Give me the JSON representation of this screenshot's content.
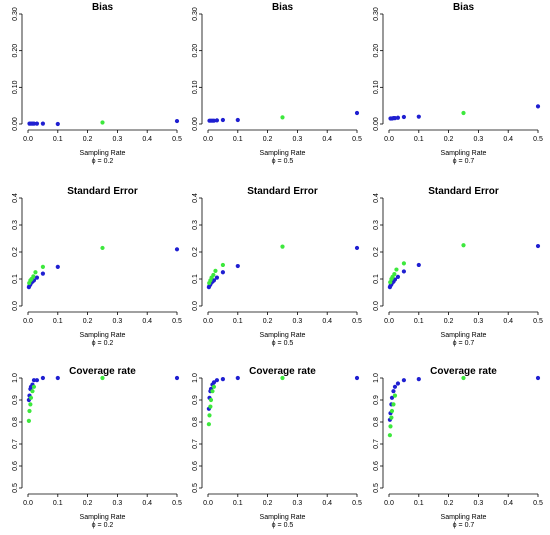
{
  "colors": {
    "series_1": "#1f1fd1",
    "series_2": "#3de83d"
  },
  "columns": [
    {
      "xlabel": "Sampling Rate",
      "phi_label": "ϕ = 0.2"
    },
    {
      "xlabel": "Sampling Rate",
      "phi_label": "ϕ = 0.5"
    },
    {
      "xlabel": "Sampling Rate",
      "phi_label": "ϕ = 0.7"
    }
  ],
  "chart_data": [
    {
      "type": "scatter",
      "title": "Bias",
      "xlabel": "Sampling Rate",
      "subtitle": "ϕ = 0.2",
      "xlim": [
        0,
        0.5
      ],
      "ylim": [
        0,
        0.3
      ],
      "xticks": [
        "0.0",
        "0.1",
        "0.2",
        "0.3",
        "0.4",
        "0.5"
      ],
      "yticks": [
        "0.00",
        "0.10",
        "0.20",
        "0.30"
      ],
      "grid": false,
      "series": [
        {
          "color": "blue",
          "points": [
            [
              0.005,
              0.001
            ],
            [
              0.01,
              0.001
            ],
            [
              0.015,
              0.001
            ],
            [
              0.02,
              0.001
            ],
            [
              0.03,
              0.001
            ],
            [
              0.05,
              0.001
            ],
            [
              0.1,
              0.0
            ],
            [
              0.5,
              0.008
            ]
          ]
        },
        {
          "color": "green",
          "points": [
            [
              0.25,
              0.004
            ]
          ]
        }
      ]
    },
    {
      "type": "scatter",
      "title": "Bias",
      "xlabel": "Sampling Rate",
      "subtitle": "ϕ = 0.5",
      "xlim": [
        0,
        0.5
      ],
      "ylim": [
        0,
        0.3
      ],
      "xticks": [
        "0.0",
        "0.1",
        "0.2",
        "0.3",
        "0.4",
        "0.5"
      ],
      "yticks": [
        "0.00",
        "0.10",
        "0.20",
        "0.30"
      ],
      "grid": false,
      "series": [
        {
          "color": "blue",
          "points": [
            [
              0.005,
              0.009
            ],
            [
              0.01,
              0.009
            ],
            [
              0.015,
              0.009
            ],
            [
              0.02,
              0.009
            ],
            [
              0.03,
              0.01
            ],
            [
              0.05,
              0.011
            ],
            [
              0.1,
              0.011
            ],
            [
              0.5,
              0.03
            ]
          ]
        },
        {
          "color": "green",
          "points": [
            [
              0.25,
              0.018
            ]
          ]
        }
      ]
    },
    {
      "type": "scatter",
      "title": "Bias",
      "xlabel": "Sampling Rate",
      "subtitle": "ϕ = 0.7",
      "xlim": [
        0,
        0.5
      ],
      "ylim": [
        0,
        0.3
      ],
      "xticks": [
        "0.0",
        "0.1",
        "0.2",
        "0.3",
        "0.4",
        "0.5"
      ],
      "yticks": [
        "0.00",
        "0.10",
        "0.20",
        "0.30"
      ],
      "grid": false,
      "series": [
        {
          "color": "blue",
          "points": [
            [
              0.005,
              0.015
            ],
            [
              0.01,
              0.015
            ],
            [
              0.015,
              0.016
            ],
            [
              0.02,
              0.016
            ],
            [
              0.03,
              0.017
            ],
            [
              0.05,
              0.019
            ],
            [
              0.1,
              0.02
            ],
            [
              0.5,
              0.048
            ]
          ]
        },
        {
          "color": "green",
          "points": [
            [
              0.25,
              0.03
            ]
          ]
        }
      ]
    },
    {
      "type": "scatter",
      "title": "Standard Error",
      "xlabel": "Sampling Rate",
      "subtitle": "ϕ = 0.2",
      "xlim": [
        0,
        0.5
      ],
      "ylim": [
        0,
        0.4
      ],
      "xticks": [
        "0.0",
        "0.1",
        "0.2",
        "0.3",
        "0.4",
        "0.5"
      ],
      "yticks": [
        "0.0",
        "0.1",
        "0.2",
        "0.3",
        "0.4"
      ],
      "grid": false,
      "series": [
        {
          "color": "blue",
          "points": [
            [
              0.003,
              0.07
            ],
            [
              0.005,
              0.075
            ],
            [
              0.008,
              0.08
            ],
            [
              0.01,
              0.085
            ],
            [
              0.015,
              0.09
            ],
            [
              0.02,
              0.095
            ],
            [
              0.03,
              0.105
            ],
            [
              0.05,
              0.12
            ],
            [
              0.1,
              0.145
            ],
            [
              0.5,
              0.21
            ]
          ]
        },
        {
          "color": "green",
          "points": [
            [
              0.004,
              0.085
            ],
            [
              0.008,
              0.095
            ],
            [
              0.012,
              0.1
            ],
            [
              0.018,
              0.11
            ],
            [
              0.025,
              0.125
            ],
            [
              0.05,
              0.145
            ],
            [
              0.25,
              0.215
            ]
          ]
        }
      ]
    },
    {
      "type": "scatter",
      "title": "Standard Error",
      "xlabel": "Sampling Rate",
      "subtitle": "ϕ = 0.5",
      "xlim": [
        0,
        0.5
      ],
      "ylim": [
        0,
        0.4
      ],
      "xticks": [
        "0.0",
        "0.1",
        "0.2",
        "0.3",
        "0.4",
        "0.5"
      ],
      "yticks": [
        "0.0",
        "0.1",
        "0.2",
        "0.3",
        "0.4"
      ],
      "grid": false,
      "series": [
        {
          "color": "blue",
          "points": [
            [
              0.003,
              0.07
            ],
            [
              0.005,
              0.075
            ],
            [
              0.008,
              0.08
            ],
            [
              0.01,
              0.085
            ],
            [
              0.015,
              0.09
            ],
            [
              0.02,
              0.095
            ],
            [
              0.03,
              0.105
            ],
            [
              0.05,
              0.125
            ],
            [
              0.1,
              0.148
            ],
            [
              0.5,
              0.215
            ]
          ]
        },
        {
          "color": "green",
          "points": [
            [
              0.004,
              0.085
            ],
            [
              0.008,
              0.095
            ],
            [
              0.012,
              0.105
            ],
            [
              0.018,
              0.115
            ],
            [
              0.025,
              0.13
            ],
            [
              0.05,
              0.152
            ],
            [
              0.25,
              0.22
            ]
          ]
        }
      ]
    },
    {
      "type": "scatter",
      "title": "Standard Error",
      "xlabel": "Sampling Rate",
      "subtitle": "ϕ = 0.7",
      "xlim": [
        0,
        0.5
      ],
      "ylim": [
        0,
        0.4
      ],
      "xticks": [
        "0.0",
        "0.1",
        "0.2",
        "0.3",
        "0.4",
        "0.5"
      ],
      "yticks": [
        "0.0",
        "0.1",
        "0.2",
        "0.3",
        "0.4"
      ],
      "grid": false,
      "series": [
        {
          "color": "blue",
          "points": [
            [
              0.003,
              0.07
            ],
            [
              0.005,
              0.075
            ],
            [
              0.008,
              0.08
            ],
            [
              0.01,
              0.085
            ],
            [
              0.015,
              0.09
            ],
            [
              0.02,
              0.098
            ],
            [
              0.03,
              0.108
            ],
            [
              0.05,
              0.128
            ],
            [
              0.1,
              0.152
            ],
            [
              0.5,
              0.222
            ]
          ]
        },
        {
          "color": "green",
          "points": [
            [
              0.004,
              0.088
            ],
            [
              0.008,
              0.1
            ],
            [
              0.012,
              0.108
            ],
            [
              0.018,
              0.118
            ],
            [
              0.025,
              0.135
            ],
            [
              0.05,
              0.158
            ],
            [
              0.25,
              0.225
            ]
          ]
        }
      ]
    },
    {
      "type": "scatter",
      "title": "Coverage rate",
      "xlabel": "Sampling Rate",
      "subtitle": "ϕ = 0.2",
      "xlim": [
        0,
        0.5
      ],
      "ylim": [
        0.5,
        1.0
      ],
      "xticks": [
        "0.0",
        "0.1",
        "0.2",
        "0.3",
        "0.4",
        "0.5"
      ],
      "yticks": [
        "0.5",
        "0.6",
        "0.7",
        "0.8",
        "0.9",
        "1.0"
      ],
      "grid": false,
      "series": [
        {
          "color": "blue",
          "points": [
            [
              0.003,
              0.9
            ],
            [
              0.005,
              0.92
            ],
            [
              0.008,
              0.95
            ],
            [
              0.01,
              0.96
            ],
            [
              0.015,
              0.97
            ],
            [
              0.02,
              0.99
            ],
            [
              0.03,
              0.99
            ],
            [
              0.05,
              1.0
            ],
            [
              0.1,
              1.0
            ],
            [
              0.5,
              1.0
            ]
          ]
        },
        {
          "color": "green",
          "points": [
            [
              0.003,
              0.805
            ],
            [
              0.005,
              0.85
            ],
            [
              0.008,
              0.88
            ],
            [
              0.01,
              0.91
            ],
            [
              0.015,
              0.94
            ],
            [
              0.02,
              0.96
            ],
            [
              0.25,
              1.0
            ]
          ]
        }
      ]
    },
    {
      "type": "scatter",
      "title": "Coverage rate",
      "xlabel": "Sampling Rate",
      "subtitle": "ϕ = 0.5",
      "xlim": [
        0,
        0.5
      ],
      "ylim": [
        0.5,
        1.0
      ],
      "xticks": [
        "0.0",
        "0.1",
        "0.2",
        "0.3",
        "0.4",
        "0.5"
      ],
      "yticks": [
        "0.5",
        "0.6",
        "0.7",
        "0.8",
        "0.9",
        "1.0"
      ],
      "grid": false,
      "series": [
        {
          "color": "blue",
          "points": [
            [
              0.003,
              0.86
            ],
            [
              0.005,
              0.91
            ],
            [
              0.008,
              0.94
            ],
            [
              0.01,
              0.95
            ],
            [
              0.015,
              0.97
            ],
            [
              0.02,
              0.98
            ],
            [
              0.03,
              0.99
            ],
            [
              0.05,
              0.995
            ],
            [
              0.1,
              1.0
            ],
            [
              0.5,
              1.0
            ]
          ]
        },
        {
          "color": "green",
          "points": [
            [
              0.003,
              0.79
            ],
            [
              0.005,
              0.83
            ],
            [
              0.008,
              0.87
            ],
            [
              0.01,
              0.9
            ],
            [
              0.015,
              0.94
            ],
            [
              0.02,
              0.96
            ],
            [
              0.25,
              1.0
            ]
          ]
        }
      ]
    },
    {
      "type": "scatter",
      "title": "Coverage rate",
      "xlabel": "Sampling Rate",
      "subtitle": "ϕ = 0.7",
      "xlim": [
        0,
        0.5
      ],
      "ylim": [
        0.5,
        1.0
      ],
      "xticks": [
        "0.0",
        "0.1",
        "0.2",
        "0.3",
        "0.4",
        "0.5"
      ],
      "yticks": [
        "0.5",
        "0.6",
        "0.7",
        "0.8",
        "0.9",
        "1.0"
      ],
      "grid": false,
      "series": [
        {
          "color": "blue",
          "points": [
            [
              0.003,
              0.81
            ],
            [
              0.005,
              0.84
            ],
            [
              0.008,
              0.88
            ],
            [
              0.01,
              0.91
            ],
            [
              0.015,
              0.94
            ],
            [
              0.02,
              0.96
            ],
            [
              0.03,
              0.975
            ],
            [
              0.05,
              0.99
            ],
            [
              0.1,
              0.995
            ],
            [
              0.5,
              1.0
            ]
          ]
        },
        {
          "color": "green",
          "points": [
            [
              0.003,
              0.74
            ],
            [
              0.005,
              0.78
            ],
            [
              0.008,
              0.82
            ],
            [
              0.01,
              0.85
            ],
            [
              0.015,
              0.88
            ],
            [
              0.02,
              0.92
            ],
            [
              0.25,
              1.0
            ]
          ]
        }
      ]
    }
  ]
}
